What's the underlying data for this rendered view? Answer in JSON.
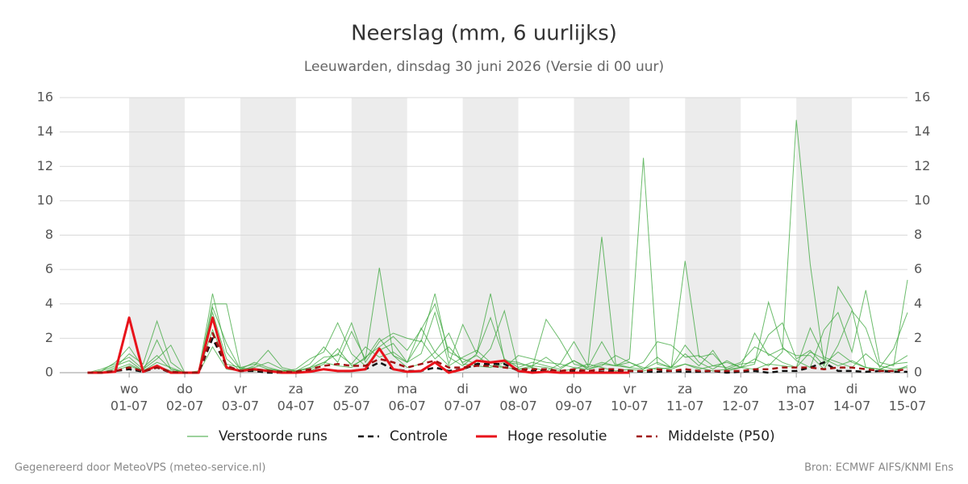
{
  "chart_data": {
    "type": "line",
    "title": "Neerslag (mm, 6 uurlijks)",
    "subtitle": "Leeuwarden, dinsdag 30 juni 2026 (Versie di 00 uur)",
    "footer_left": "Gegenereerd door MeteoVPS (meteo-service.nl)",
    "footer_right": "Bron: ECMWF AIFS/KNMI Ens",
    "xlim": [
      -0.25,
      15
    ],
    "ylim": [
      0,
      16
    ],
    "yticks": [
      0,
      2,
      4,
      6,
      8,
      10,
      12,
      14,
      16
    ],
    "grid": true,
    "xticks": [
      {
        "value": 1,
        "day": "wo",
        "label": "01-07"
      },
      {
        "value": 2,
        "day": "do",
        "label": "02-07"
      },
      {
        "value": 3,
        "day": "vr",
        "label": "03-07"
      },
      {
        "value": 4,
        "day": "za",
        "label": "04-07"
      },
      {
        "value": 5,
        "day": "zo",
        "label": "05-07"
      },
      {
        "value": 6,
        "day": "ma",
        "label": "06-07"
      },
      {
        "value": 7,
        "day": "di",
        "label": "07-07"
      },
      {
        "value": 8,
        "day": "wo",
        "label": "08-07"
      },
      {
        "value": 9,
        "day": "do",
        "label": "09-07"
      },
      {
        "value": 10,
        "day": "vr",
        "label": "10-07"
      },
      {
        "value": 11,
        "day": "za",
        "label": "11-07"
      },
      {
        "value": 12,
        "day": "zo",
        "label": "12-07"
      },
      {
        "value": 13,
        "day": "ma",
        "label": "13-07"
      },
      {
        "value": 14,
        "day": "di",
        "label": "14-07"
      },
      {
        "value": 15,
        "day": "wo",
        "label": "15-07"
      }
    ],
    "x": [
      0.25,
      0.5,
      0.75,
      1,
      1.25,
      1.5,
      1.75,
      2,
      2.25,
      2.5,
      2.75,
      3,
      3.25,
      3.5,
      3.75,
      4,
      4.25,
      4.5,
      4.75,
      5,
      5.25,
      5.5,
      5.75,
      6,
      6.25,
      6.5,
      6.75,
      7,
      7.25,
      7.5,
      7.75,
      8,
      8.25,
      8.5,
      8.75,
      9,
      9.25,
      9.5,
      9.75,
      10,
      10.25,
      10.5,
      10.75,
      11,
      11.25,
      11.5,
      11.75,
      12,
      12.25,
      12.5,
      12.75,
      13,
      13.25,
      13.5,
      13.75,
      14,
      14.25,
      14.5,
      14.75,
      15
    ],
    "ensemble": {
      "name": "Verstoorde runs",
      "color": "#3aa53a",
      "members": [
        [
          0,
          0.1,
          0.6,
          1.5,
          0.3,
          1.0,
          0.2,
          0,
          0.1,
          4.6,
          1.2,
          0.2,
          0.3,
          0.6,
          0.2,
          0,
          0.1,
          0.5,
          1.4,
          0.4,
          0.8,
          6.1,
          1.0,
          0.3,
          0.5,
          1.2,
          0.4,
          0.9,
          1.3,
          0.6,
          0.3,
          0.2,
          0.4,
          0.3,
          0.1,
          0.2,
          0.5,
          0.3,
          0.1,
          0.2,
          0.1,
          0.3,
          0.2,
          0.5,
          0.3,
          0.1,
          0.2,
          0.3,
          0.8,
          0.4,
          1.2,
          14.7,
          6.3,
          0.5,
          1.2,
          0.6,
          0.3,
          0.2,
          0.1,
          0.4
        ],
        [
          0,
          0,
          0.3,
          1.1,
          0.5,
          3.0,
          0.6,
          0,
          0,
          3.5,
          0.8,
          0.1,
          0.4,
          1.3,
          0.3,
          0.1,
          0.3,
          0.9,
          1.0,
          2.9,
          0.6,
          1.8,
          2.3,
          2.0,
          1.8,
          4.6,
          0.9,
          0.4,
          1.1,
          4.6,
          0.7,
          0.6,
          0.3,
          3.1,
          1.9,
          0.5,
          0.3,
          0.6,
          0.4,
          0.8,
          12.5,
          0.5,
          0.3,
          1.6,
          0.6,
          0.2,
          0.7,
          0.3,
          0.2,
          0.5,
          0.4,
          0.3,
          2.6,
          0.9,
          0.6,
          0.3,
          1.1,
          0.4,
          0.2,
          0.3
        ],
        [
          0,
          0.2,
          0.5,
          0.9,
          0.2,
          0.8,
          1.6,
          0,
          0,
          4.0,
          4.0,
          0.3,
          0.5,
          0.2,
          0.1,
          0.1,
          0.2,
          0.6,
          0.4,
          0.3,
          0.9,
          1.5,
          2.1,
          1.3,
          2.5,
          4.0,
          1.2,
          0.8,
          0.5,
          1.4,
          3.6,
          0.2,
          0.3,
          0.1,
          0.5,
          1.8,
          0.4,
          7.9,
          0.5,
          0.3,
          0.2,
          0.6,
          0.3,
          6.5,
          0.9,
          1.1,
          0.2,
          0.5,
          0.6,
          2.2,
          2.9,
          0.8,
          1.3,
          0.4,
          5.0,
          3.7,
          0.3,
          0.2,
          0.5,
          0.6
        ],
        [
          0,
          0.1,
          0.4,
          0.7,
          0.1,
          0.6,
          0.3,
          0,
          0,
          3.8,
          1.7,
          0.2,
          0.6,
          0.3,
          0.1,
          0.2,
          0.8,
          1.2,
          2.9,
          1.1,
          0.4,
          1.3,
          1.7,
          0.6,
          1.1,
          3.5,
          0.5,
          2.8,
          1.1,
          3.2,
          0.8,
          0.3,
          0.6,
          0.4,
          0.2,
          0.7,
          0.3,
          1.8,
          0.4,
          0.6,
          0.2,
          0.9,
          0.3,
          1.1,
          0.4,
          1.3,
          0.1,
          0.3,
          0.5,
          4.1,
          1.5,
          0.7,
          0.3,
          2.5,
          3.5,
          1.2,
          4.8,
          0.6,
          0.4,
          5.4
        ],
        [
          0,
          0,
          0.2,
          0.5,
          0.1,
          1.9,
          0.2,
          0,
          0,
          2.5,
          0.5,
          0.3,
          0.1,
          0.2,
          0.1,
          0.1,
          0.5,
          1.5,
          0.6,
          2.4,
          0.8,
          2.0,
          1.0,
          0.6,
          2.6,
          1.2,
          2.3,
          0.5,
          0.4,
          0.3,
          0.6,
          0.5,
          0.4,
          0.9,
          0.3,
          0.7,
          0.2,
          0.5,
          0.4,
          0.3,
          0.6,
          1.8,
          1.6,
          0.9,
          1.0,
          0.4,
          0.6,
          0.3,
          2.3,
          1.0,
          1.4,
          1.0,
          1.0,
          0.2,
          1.6,
          3.6,
          2.6,
          0.3,
          1.4,
          3.5
        ],
        [
          0,
          0,
          0.1,
          0.4,
          0.1,
          0.4,
          0.1,
          0,
          0,
          1.5,
          0.2,
          0.1,
          0.2,
          0.1,
          0,
          0.1,
          0.3,
          0.6,
          1.1,
          0.5,
          1.5,
          0.9,
          1.2,
          0.6,
          1.9,
          0.8,
          1.5,
          0.6,
          1.0,
          0.4,
          0.3,
          1.0,
          0.8,
          0.6,
          0.5,
          0.3,
          0.2,
          0.4,
          1.0,
          0.6,
          0.3,
          0.2,
          0.3,
          0.5,
          0.2,
          0.4,
          0.3,
          0.6,
          1.5,
          1.1,
          0.6,
          0.3,
          1.2,
          0.8,
          0.4,
          0.7,
          0.3,
          0.2,
          0.5,
          1.0
        ]
      ]
    },
    "series": [
      {
        "name": "Controle",
        "color": "#111111",
        "dash": "dashed",
        "values": [
          0,
          0,
          0.1,
          0.2,
          0.05,
          0.3,
          0,
          0,
          0,
          2.0,
          0.4,
          0.1,
          0.1,
          0,
          0,
          0,
          0.1,
          0.2,
          0.1,
          0.1,
          0.2,
          0.6,
          0.2,
          0.1,
          0.1,
          0.3,
          0.1,
          0.2,
          0.5,
          0.5,
          0.5,
          0.1,
          0.1,
          0.1,
          0.1,
          0.1,
          0.1,
          0.05,
          0.1,
          0.1,
          0.05,
          0.05,
          0.1,
          0.05,
          0.05,
          0.1,
          0,
          0.05,
          0.1,
          0,
          0.1,
          0.1,
          0.3,
          0.6,
          0.1,
          0.1,
          0.05,
          0.1,
          0.05,
          0.05
        ]
      },
      {
        "name": "Hoge resolutie",
        "color": "#e8131b",
        "dash": "solid",
        "values": [
          0,
          0,
          0.05,
          3.2,
          0.05,
          0.4,
          0,
          0,
          0,
          3.2,
          0.3,
          0.1,
          0.2,
          0.1,
          0,
          0,
          0.05,
          0.2,
          0.1,
          0.1,
          0.2,
          1.4,
          0.2,
          0.05,
          0.1,
          0.6,
          0,
          0.2,
          0.7,
          0.6,
          0.7,
          0.1,
          0,
          0.05,
          0,
          0,
          0,
          0,
          0,
          0,
          null,
          null,
          null,
          null,
          null,
          null,
          null,
          null,
          null,
          null,
          null,
          null,
          null,
          null,
          null,
          null,
          null,
          null,
          null,
          null
        ]
      },
      {
        "name": "Middelste (P50)",
        "color": "#a01010",
        "dash": "dashed",
        "values": [
          0,
          0,
          0.1,
          0.3,
          0.1,
          0.3,
          0.05,
          0,
          0,
          2.3,
          0.4,
          0.1,
          0.2,
          0.1,
          0.05,
          0.05,
          0.2,
          0.4,
          0.5,
          0.4,
          0.4,
          0.8,
          0.6,
          0.3,
          0.5,
          0.7,
          0.3,
          0.3,
          0.4,
          0.4,
          0.3,
          0.2,
          0.2,
          0.2,
          0.1,
          0.2,
          0.1,
          0.2,
          0.2,
          0.1,
          0.1,
          0.2,
          0.1,
          0.2,
          0.1,
          0.1,
          0.1,
          0.1,
          0.2,
          0.2,
          0.3,
          0.3,
          0.3,
          0.2,
          0.3,
          0.3,
          0.2,
          0.1,
          0.1,
          0.2
        ]
      }
    ]
  }
}
